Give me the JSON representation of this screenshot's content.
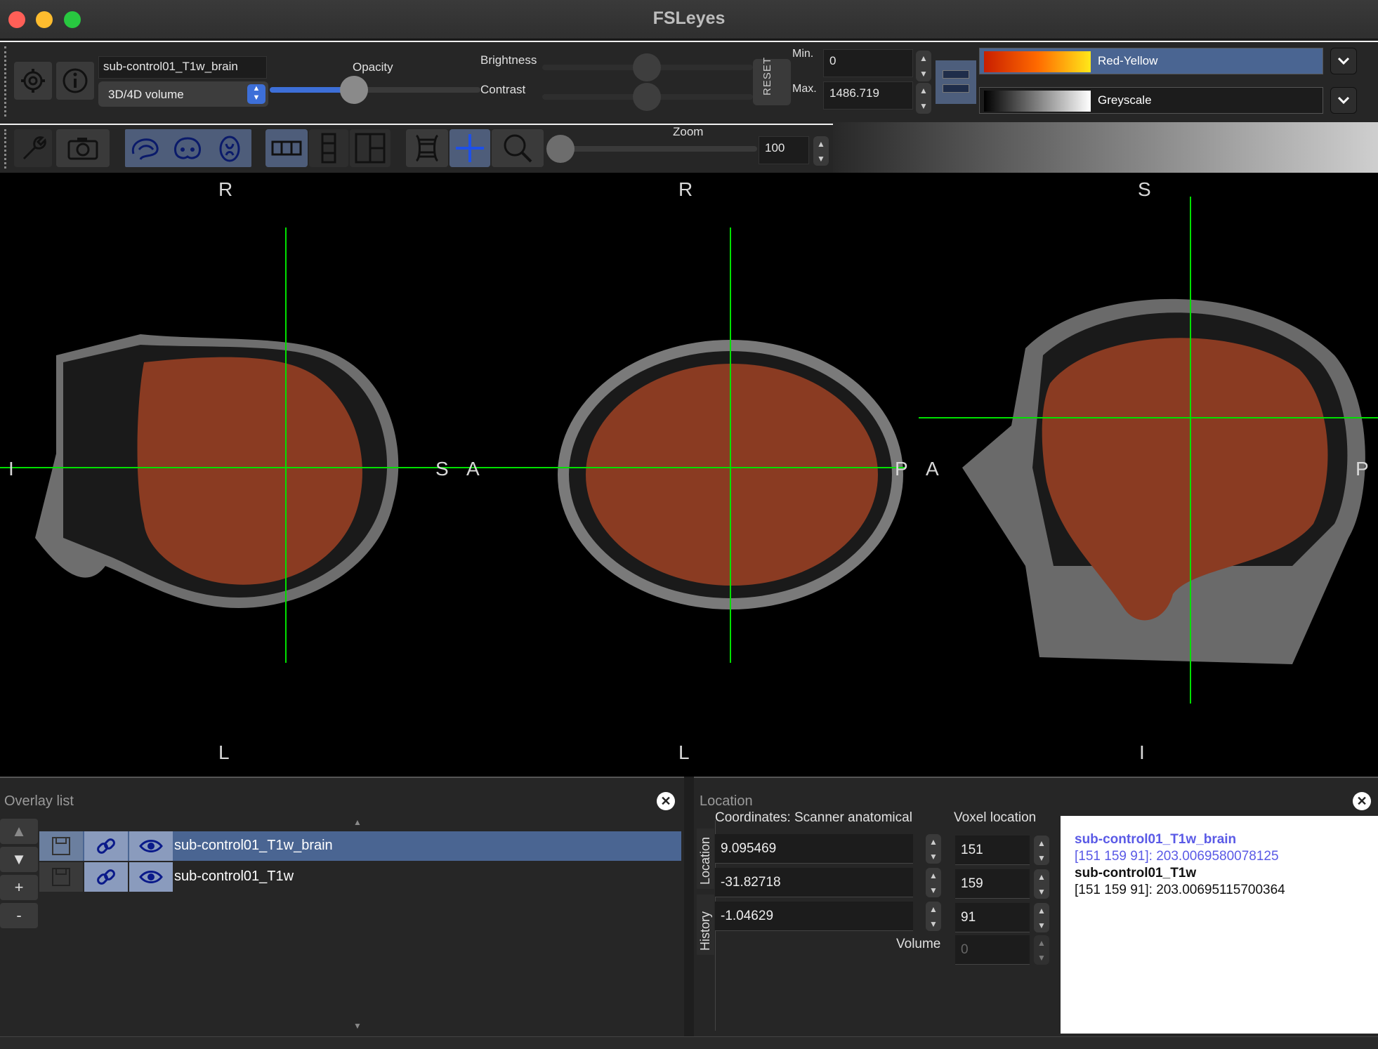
{
  "window": {
    "title": "FSLeyes"
  },
  "toolbar": {
    "overlay_name": "sub-control01_T1w_brain",
    "overlay_type": "3D/4D volume",
    "opacity_label": "Opacity",
    "opacity_value": 0.4,
    "brightness_label": "Brightness",
    "contrast_label": "Contrast",
    "reset_label": "RESET",
    "min_label": "Min.",
    "min_value": "0",
    "max_label": "Max.",
    "max_value": "1486.719",
    "colormap_primary": "Red-Yellow",
    "colormap_secondary": "Greyscale",
    "zoom_label": "Zoom",
    "zoom_value": "100"
  },
  "views": {
    "labels": {
      "v1_top": "R",
      "v1_bottom": "L",
      "v1_left": "I",
      "v1_right": "S",
      "v2_top": "R",
      "v2_bottom": "L",
      "v2_left": "A",
      "v2_right": "P",
      "v3_top": "S",
      "v3_bottom": "I",
      "v3_left": "A",
      "v3_right": "P"
    }
  },
  "overlay_list": {
    "title": "Overlay list",
    "items": [
      {
        "name": "sub-control01_T1w_brain",
        "selected": true
      },
      {
        "name": "sub-control01_T1w",
        "selected": false
      }
    ],
    "buttons": {
      "up": "▲",
      "down": "▼",
      "add": "+",
      "remove": "-"
    }
  },
  "location": {
    "title": "Location",
    "tab_location": "Location",
    "tab_history": "History",
    "coords_header": "Coordinates: Scanner anatomical",
    "voxel_header": "Voxel location",
    "coords": [
      "9.095469",
      "-31.82718",
      "-1.04629"
    ],
    "voxels": [
      "151",
      "159",
      "91"
    ],
    "volume_label": "Volume",
    "volume_value": "0",
    "info": {
      "o1_name": "sub-control01_T1w_brain",
      "o1_value": "[151 159 91]: 203.0069580078125",
      "o2_name": "sub-control01_T1w",
      "o2_value": "[151 159 91]: 203.00695115700364"
    }
  },
  "colors": {
    "accent": "#4e6a9a",
    "crosshair": "#00ff00",
    "selection": "#4a6592"
  }
}
